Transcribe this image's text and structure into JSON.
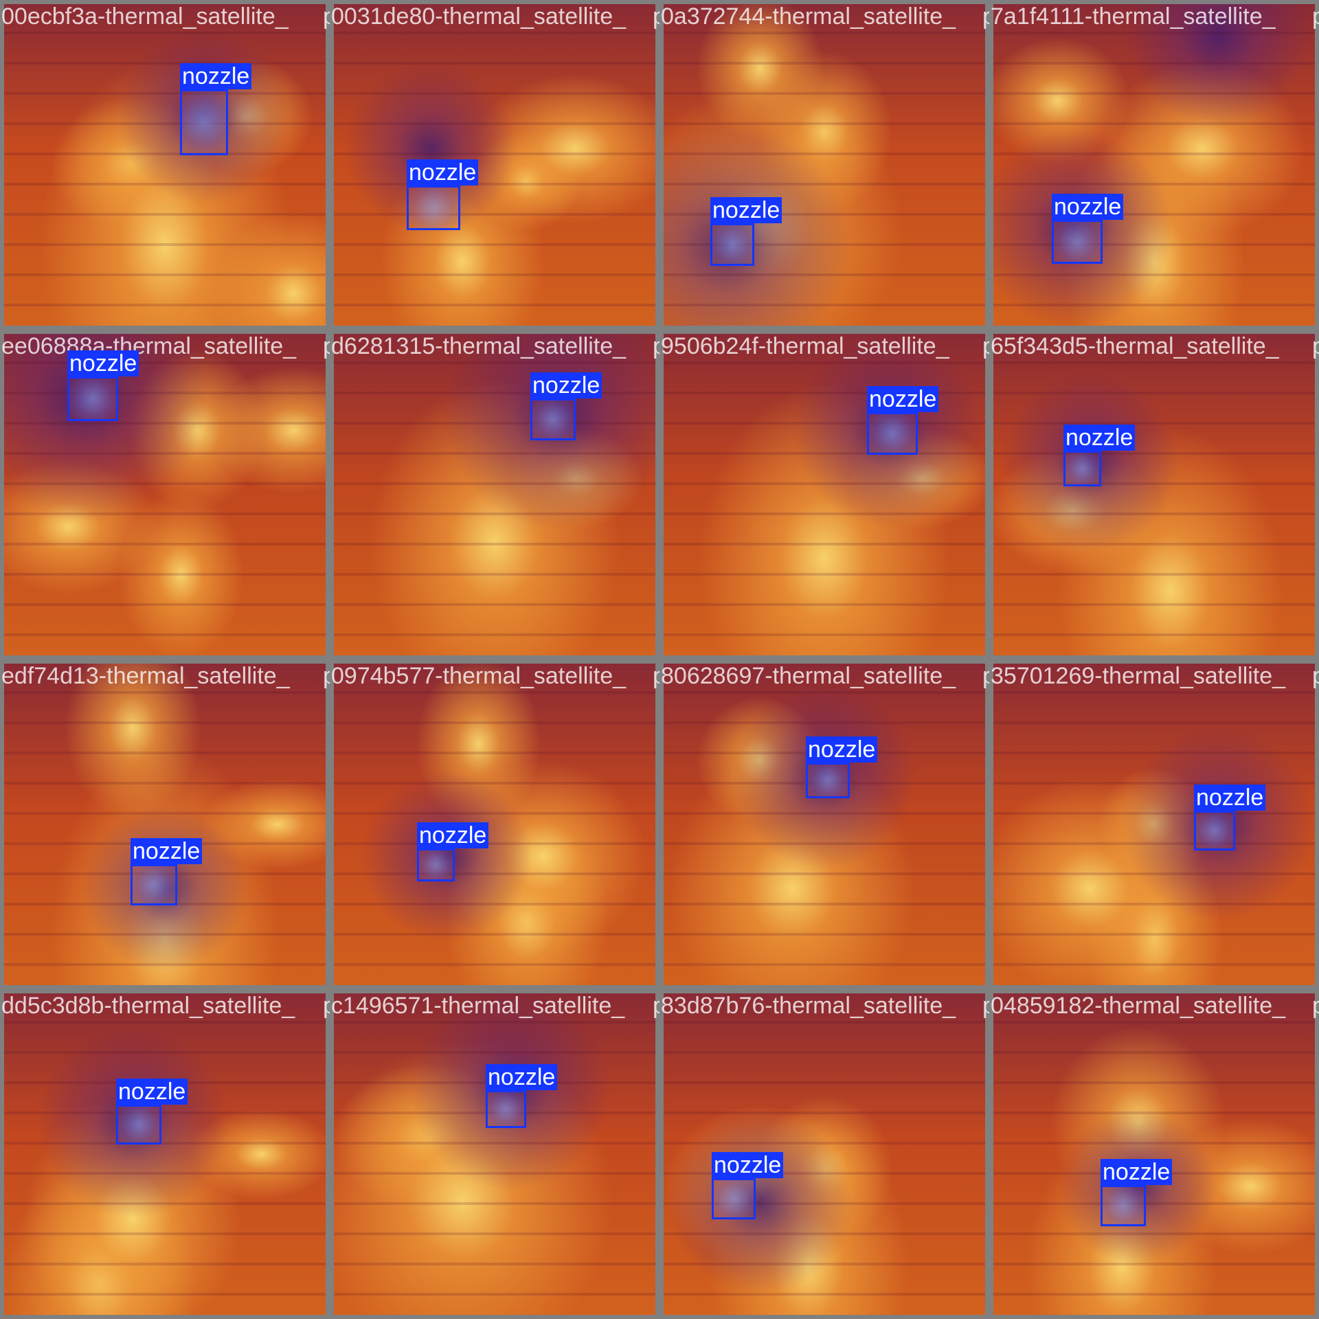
{
  "label_color": "#1436ff",
  "tiles": [
    {
      "caption": "00ecbf3a-thermal_satellite_",
      "caption2": "0031de80-thermal_satellite_",
      "overlap": "png",
      "label": "nozzle",
      "base": "#c64a1e",
      "hot": [
        [
          0.5,
          0.75,
          0.55
        ],
        [
          0.4,
          0.5,
          0.3
        ],
        [
          0.75,
          0.35,
          0.2
        ],
        [
          0.9,
          0.9,
          0.2
        ]
      ],
      "cold": [
        [
          0.62,
          0.35,
          0.3
        ]
      ]
    },
    {
      "caption": "0031de80-thermal_satellite_",
      "caption2": "0a372744-thermal_satellite_",
      "overlap": "png",
      "label": "nozzle",
      "base": "#c54a1e",
      "hot": [
        [
          0.75,
          0.45,
          0.3
        ],
        [
          0.4,
          0.8,
          0.3
        ],
        [
          0.6,
          0.55,
          0.2
        ]
      ],
      "cold": [
        [
          0.3,
          0.45,
          0.3
        ]
      ]
    },
    {
      "caption": "0a372744-thermal_satellite_",
      "caption2": "7a1f4111-thermal_satellite_",
      "overlap": "png",
      "label": "nozzle",
      "base": "#c44a1f",
      "hot": [
        [
          0.3,
          0.7,
          0.45
        ],
        [
          0.5,
          0.4,
          0.3
        ],
        [
          0.3,
          0.2,
          0.2
        ]
      ],
      "cold": [
        [
          0.2,
          0.75,
          0.35
        ]
      ]
    },
    {
      "caption": "7a1f4111-thermal_satellite_",
      "caption2": "",
      "overlap": "png",
      "label": "nozzle",
      "base": "#c4481f",
      "hot": [
        [
          0.65,
          0.45,
          0.35
        ],
        [
          0.5,
          0.8,
          0.4
        ],
        [
          0.2,
          0.3,
          0.2
        ]
      ],
      "cold": [
        [
          0.25,
          0.7,
          0.3
        ],
        [
          0.7,
          0.1,
          0.25
        ]
      ]
    },
    {
      "caption": "ee06888a-thermal_satellite_",
      "caption2": "d6281315-thermal_satellite_",
      "overlap": "png",
      "label": "nozzle",
      "base": "#c0451f",
      "hot": [
        [
          0.6,
          0.3,
          0.25
        ],
        [
          0.2,
          0.6,
          0.25
        ],
        [
          0.55,
          0.75,
          0.25
        ],
        [
          0.9,
          0.3,
          0.2
        ]
      ],
      "cold": [
        [
          0.25,
          0.2,
          0.35
        ]
      ]
    },
    {
      "caption": "d6281315-thermal_satellite_",
      "caption2": "9506b24f-thermal_satellite_",
      "overlap": "png",
      "label": "nozzle",
      "base": "#c0461f",
      "hot": [
        [
          0.5,
          0.65,
          0.55
        ],
        [
          0.75,
          0.45,
          0.2
        ]
      ],
      "cold": [
        [
          0.7,
          0.25,
          0.35
        ]
      ]
    },
    {
      "caption": "9506b24f-thermal_satellite_",
      "caption2": "65f343d5-thermal_satellite_",
      "overlap": "png",
      "label": "nozzle",
      "base": "#c0461f",
      "hot": [
        [
          0.5,
          0.7,
          0.55
        ],
        [
          0.8,
          0.45,
          0.2
        ]
      ],
      "cold": [
        [
          0.7,
          0.3,
          0.3
        ]
      ]
    },
    {
      "caption": "65f343d5-thermal_satellite_",
      "caption2": "",
      "overlap": "png",
      "label": "nozzle",
      "base": "#c4491f",
      "hot": [
        [
          0.55,
          0.8,
          0.45
        ],
        [
          0.25,
          0.55,
          0.25
        ]
      ],
      "cold": [
        [
          0.3,
          0.4,
          0.3
        ]
      ]
    },
    {
      "caption": "edf74d13-thermal_satellite_",
      "caption2": "0974b577-thermal_satellite_",
      "overlap": "png",
      "label": "nozzle",
      "base": "#c3471f",
      "hot": [
        [
          0.4,
          0.2,
          0.25
        ],
        [
          0.5,
          0.85,
          0.5
        ],
        [
          0.85,
          0.5,
          0.2
        ]
      ],
      "cold": [
        [
          0.5,
          0.7,
          0.3
        ]
      ]
    },
    {
      "caption": "0974b577-thermal_satellite_",
      "caption2": "80628697-thermal_satellite_",
      "overlap": "png",
      "label": "nozzle",
      "base": "#c3471f",
      "hot": [
        [
          0.65,
          0.6,
          0.35
        ],
        [
          0.45,
          0.25,
          0.25
        ],
        [
          0.6,
          0.8,
          0.3
        ]
      ],
      "cold": [
        [
          0.35,
          0.6,
          0.3
        ]
      ]
    },
    {
      "caption": "80628697-thermal_satellite_",
      "caption2": "35701269-thermal_satellite_",
      "overlap": "png",
      "label": "nozzle",
      "base": "#c0461f",
      "hot": [
        [
          0.4,
          0.7,
          0.45
        ],
        [
          0.3,
          0.3,
          0.2
        ]
      ],
      "cold": [
        [
          0.5,
          0.35,
          0.35
        ]
      ]
    },
    {
      "caption": "35701269-thermal_satellite_",
      "caption2": "",
      "overlap": "png",
      "label": "nozzle",
      "base": "#c4491f",
      "hot": [
        [
          0.3,
          0.7,
          0.35
        ],
        [
          0.5,
          0.5,
          0.25
        ],
        [
          0.5,
          0.85,
          0.3
        ]
      ],
      "cold": [
        [
          0.7,
          0.5,
          0.35
        ]
      ]
    },
    {
      "caption": "dd5c3d8b-thermal_satellite_",
      "caption2": "c1496571-thermal_satellite_",
      "overlap": "png",
      "label": "nozzle",
      "base": "#c3481f",
      "hot": [
        [
          0.4,
          0.7,
          0.4
        ],
        [
          0.3,
          0.9,
          0.3
        ],
        [
          0.8,
          0.5,
          0.2
        ]
      ],
      "cold": [
        [
          0.4,
          0.4,
          0.35
        ]
      ]
    },
    {
      "caption": "c1496571-thermal_satellite_",
      "caption2": "83d87b76-thermal_satellite_",
      "overlap": "png",
      "label": "nozzle",
      "base": "#c4491f",
      "hot": [
        [
          0.4,
          0.65,
          0.55
        ],
        [
          0.3,
          0.45,
          0.3
        ]
      ],
      "cold": [
        [
          0.55,
          0.3,
          0.35
        ]
      ]
    },
    {
      "caption": "83d87b76-thermal_satellite_",
      "caption2": "04859182-thermal_satellite_",
      "overlap": "png",
      "label": "nozzle",
      "base": "#c3481f",
      "hot": [
        [
          0.45,
          0.85,
          0.4
        ],
        [
          0.5,
          0.55,
          0.3
        ],
        [
          0.3,
          0.6,
          0.3
        ]
      ],
      "cold": [
        [
          0.3,
          0.65,
          0.3
        ]
      ]
    },
    {
      "caption": "04859182-thermal_satellite_",
      "caption2": "",
      "overlap": "png",
      "label": "nozzle",
      "base": "#c4491f",
      "hot": [
        [
          0.45,
          0.4,
          0.35
        ],
        [
          0.8,
          0.6,
          0.25
        ],
        [
          0.4,
          0.85,
          0.35
        ]
      ],
      "cold": [
        [
          0.45,
          0.6,
          0.3
        ]
      ]
    }
  ]
}
